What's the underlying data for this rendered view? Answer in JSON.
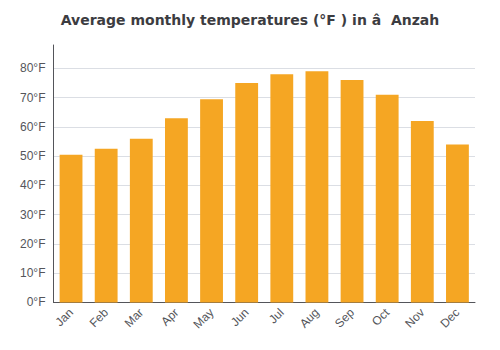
{
  "chart_data": {
    "type": "bar",
    "title": "Average monthly temperatures (°F ) in â  Anzah",
    "categories": [
      "Jan",
      "Feb",
      "Mar",
      "Apr",
      "May",
      "Jun",
      "Jul",
      "Aug",
      "Sep",
      "Oct",
      "Nov",
      "Dec"
    ],
    "values": [
      50.5,
      52.5,
      56.0,
      63.0,
      69.5,
      75.0,
      78.0,
      79.0,
      76.0,
      71.0,
      62.0,
      54.0
    ],
    "color": "#F5A623",
    "ylim": [
      0,
      88
    ],
    "yticks": [
      {
        "value": 0,
        "label": "0°F"
      },
      {
        "value": 10,
        "label": "10°F"
      },
      {
        "value": 20,
        "label": "20°F"
      },
      {
        "value": 30,
        "label": "30°F"
      },
      {
        "value": 40,
        "label": "40°F"
      },
      {
        "value": 50,
        "label": "50°F"
      },
      {
        "value": 60,
        "label": "60°F"
      },
      {
        "value": 70,
        "label": "70°F"
      },
      {
        "value": 80,
        "label": "80°F"
      }
    ],
    "grid": true
  }
}
